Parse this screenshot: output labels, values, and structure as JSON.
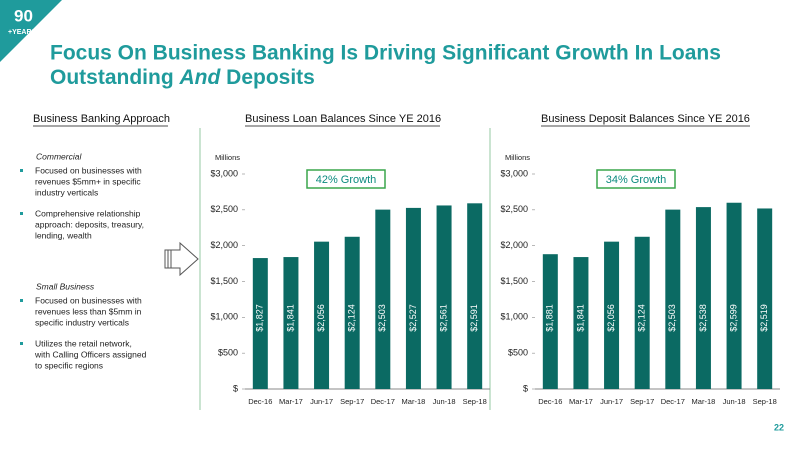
{
  "logo": {
    "number": "90",
    "text": "+YEARS"
  },
  "slide": {
    "title_line1": "Focus On Business Banking Is Driving Significant Growth In Loans",
    "title_line2_a": "Outstanding",
    "title_line2_b": "And",
    "title_line2_c": "Deposits",
    "page": "22"
  },
  "approach": {
    "heading": "Business Banking Approach",
    "sections": [
      {
        "name": "Commercial",
        "bullets": [
          [
            "Focused on businesses with",
            "revenues $5mm+ in specific",
            "industry verticals"
          ],
          [
            "Comprehensive relationship",
            "approach:  deposits, treasury,",
            "lending, wealth"
          ]
        ]
      },
      {
        "name": "Small Business",
        "bullets": [
          [
            "Focused on businesses with",
            "revenues less than $5mm in",
            "specific industry verticals"
          ],
          [
            "Utilizes the retail network,",
            "with Calling Officers assigned",
            "to specific regions"
          ]
        ]
      }
    ]
  },
  "chart_data": [
    {
      "type": "bar",
      "title": "Business Loan Balances Since YE 2016",
      "y_label": "Millions",
      "annotation": "42% Growth",
      "categories": [
        "Dec-16",
        "Mar-17",
        "Jun-17",
        "Sep-17",
        "Dec-17",
        "Mar-18",
        "Jun-18",
        "Sep-18"
      ],
      "values": [
        1827,
        1841,
        2056,
        2124,
        2503,
        2527,
        2561,
        2591
      ],
      "value_labels": [
        "$1,827",
        "$1,841",
        "$2,056",
        "$2,124",
        "$2,503",
        "$2,527",
        "$2,561",
        "$2,591"
      ],
      "color": "#0b6a63",
      "ylim": [
        0,
        3000
      ],
      "yticks": [
        {
          "value": 0,
          "label": "$"
        },
        {
          "value": 500,
          "label": "$500"
        },
        {
          "value": 1000,
          "label": "$1,000"
        },
        {
          "value": 1500,
          "label": "$1,500"
        },
        {
          "value": 2000,
          "label": "$2,000"
        },
        {
          "value": 2500,
          "label": "$2,500"
        },
        {
          "value": 3000,
          "label": "$3,000"
        }
      ]
    },
    {
      "type": "bar",
      "title": "Business Deposit Balances Since YE 2016",
      "y_label": "Millions",
      "annotation": "34% Growth",
      "categories": [
        "Dec-16",
        "Mar-17",
        "Jun-17",
        "Sep-17",
        "Dec-17",
        "Mar-18",
        "Jun-18",
        "Sep-18"
      ],
      "values": [
        1881,
        1841,
        2056,
        2124,
        2503,
        2538,
        2599,
        2519
      ],
      "value_labels": [
        "$1,881",
        "$1,841",
        "$2,056",
        "$2,124",
        "$2,503",
        "$2,538",
        "$2,599",
        "$2,519"
      ],
      "color": "#0b6a63",
      "ylim": [
        0,
        3000
      ],
      "yticks": [
        {
          "value": 0,
          "label": "$"
        },
        {
          "value": 500,
          "label": "$500"
        },
        {
          "value": 1000,
          "label": "$1,000"
        },
        {
          "value": 1500,
          "label": "$1,500"
        },
        {
          "value": 2000,
          "label": "$2,000"
        },
        {
          "value": 2500,
          "label": "$2,500"
        },
        {
          "value": 3000,
          "label": "$3,000"
        }
      ]
    }
  ]
}
